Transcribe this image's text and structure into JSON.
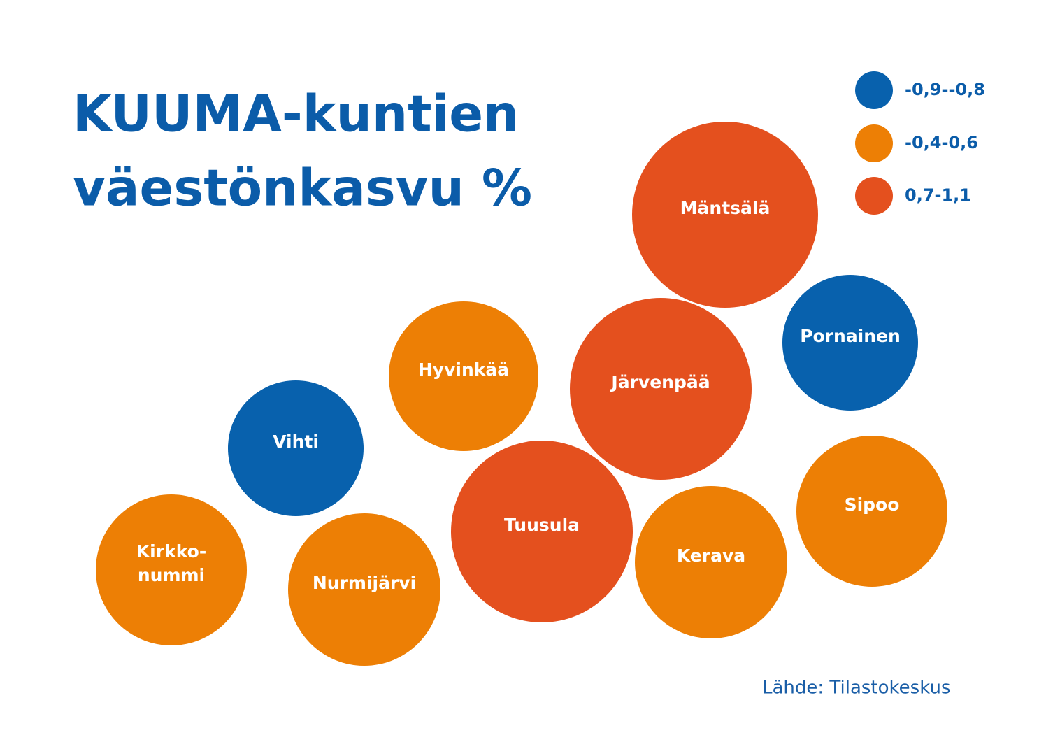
{
  "title": {
    "lines": [
      "KUUMA-kuntien",
      "väestönkasvu %"
    ]
  },
  "legend": {
    "items": [
      {
        "label": "-0,9--0,8",
        "color": "#0861ad"
      },
      {
        "label": "-0,4-0,6",
        "color": "#ed7f05"
      },
      {
        "label": "0,7-1,1",
        "color": "#e4501e"
      }
    ]
  },
  "nodes": [
    {
      "lines": [
        "Mäntsälä"
      ],
      "group": 2
    },
    {
      "lines": [
        "Pornainen"
      ],
      "group": 0
    },
    {
      "lines": [
        "Hyvinkää"
      ],
      "group": 1
    },
    {
      "lines": [
        "Järvenpää"
      ],
      "group": 2
    },
    {
      "lines": [
        "Vihti"
      ],
      "group": 0
    },
    {
      "lines": [
        "Sipoo"
      ],
      "group": 1
    },
    {
      "lines": [
        "Tuusula"
      ],
      "group": 2
    },
    {
      "lines": [
        "Kerava"
      ],
      "group": 1
    },
    {
      "lines": [
        "Kirkko-",
        "nummi"
      ],
      "group": 1
    },
    {
      "lines": [
        "Nurmijärvi"
      ],
      "group": 1
    }
  ],
  "source": "Lähde: Tilastokeskus"
}
